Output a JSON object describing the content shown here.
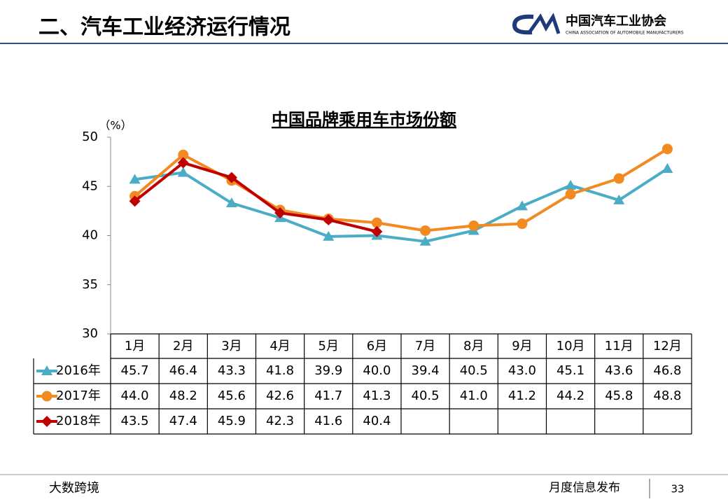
{
  "header": {
    "title": "二、汽车工业经济运行情况",
    "logo": "中国汽车工业协会",
    "logo_subtitle": "CHINA ASSOCIATION OF AUTOMOBILE MANUFACTURERS"
  },
  "footer": {
    "text": "月度信息发布",
    "page": "33",
    "watermark": "大数跨境"
  },
  "chart_data": {
    "type": "line",
    "title": "中国品牌乘用车市场份额",
    "y_unit": "（%）",
    "categories": [
      "1月",
      "2月",
      "3月",
      "4月",
      "5月",
      "6月",
      "7月",
      "8月",
      "9月",
      "10月",
      "11月",
      "12月"
    ],
    "series": [
      {
        "name": "2016年",
        "color": "#4bacc6",
        "marker": "triangle",
        "values": [
          45.7,
          46.4,
          43.3,
          41.8,
          39.9,
          40.0,
          39.4,
          40.5,
          43.0,
          45.1,
          43.6,
          46.8
        ],
        "value_labels": [
          "45.7",
          "46.4",
          "43.3",
          "41.8",
          "39.9",
          "40.0",
          "39.4",
          "40.5",
          "43.0",
          "45.1",
          "43.6",
          "46.8"
        ]
      },
      {
        "name": "2017年",
        "color": "#f28a22",
        "marker": "circle",
        "values": [
          44.0,
          48.2,
          45.6,
          42.6,
          41.7,
          41.3,
          40.5,
          41.0,
          41.2,
          44.2,
          45.8,
          48.8
        ],
        "value_labels": [
          "44.0",
          "48.2",
          "45.6",
          "42.6",
          "41.7",
          "41.3",
          "40.5",
          "41.0",
          "41.2",
          "44.2",
          "45.8",
          "48.8"
        ]
      },
      {
        "name": "2018年",
        "color": "#c00000",
        "marker": "diamond",
        "values": [
          43.5,
          47.4,
          45.9,
          42.3,
          41.6,
          40.4,
          null,
          null,
          null,
          null,
          null,
          null
        ],
        "value_labels": [
          "43.5",
          "47.4",
          "45.9",
          "42.3",
          "41.6",
          "40.4",
          null,
          null,
          null,
          null,
          null,
          null
        ]
      }
    ],
    "ylim": [
      30,
      50
    ],
    "yticks": [
      30,
      35,
      40,
      45,
      50
    ],
    "grid": false
  }
}
